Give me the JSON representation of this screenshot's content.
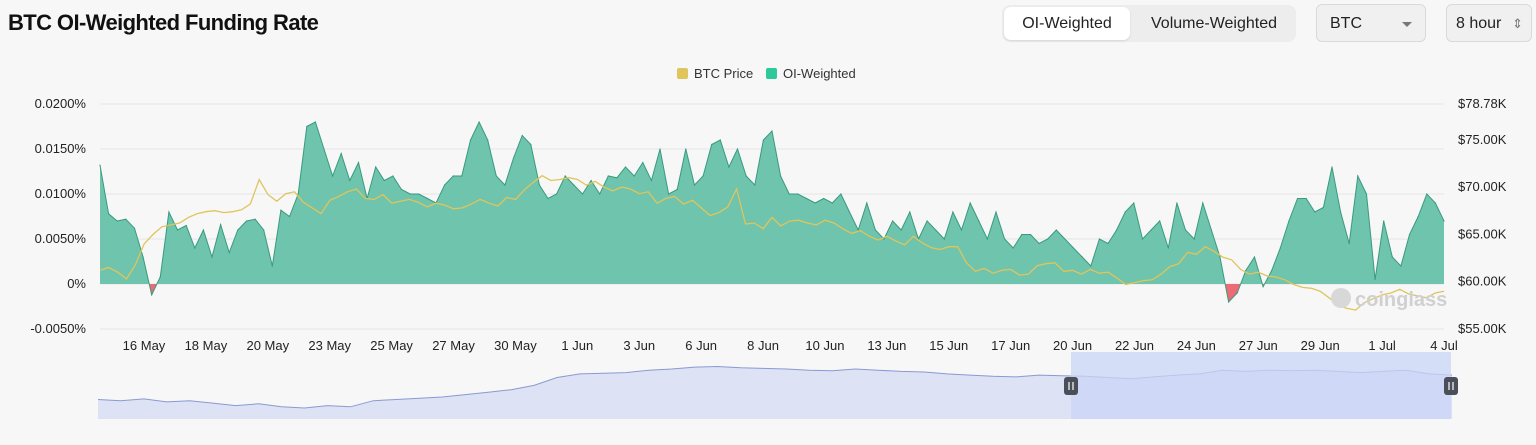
{
  "header": {
    "title": "BTC OI-Weighted Funding Rate",
    "tabs": [
      {
        "label": "OI-Weighted",
        "active": true
      },
      {
        "label": "Volume-Weighted",
        "active": false
      }
    ],
    "coin_select": {
      "value": "BTC"
    },
    "interval_select": {
      "value": "8 hour"
    }
  },
  "watermark": "coinglass",
  "colors": {
    "price": "#e0c45c",
    "positive": "#6ec4ac",
    "positive_line": "#3a9a7e",
    "negative": "#ec6b77",
    "legend_green": "#2ec99b",
    "navigator": "#dde2f5",
    "navigator_selected": "#c9d6f7",
    "navigator_line": "#8a9ad0"
  },
  "chart_data": {
    "type": "area",
    "legend": [
      {
        "name": "BTC Price",
        "color": "#e0c45c"
      },
      {
        "name": "OI-Weighted",
        "color": "#2ec99b"
      }
    ],
    "x_ticks": [
      "16 May",
      "18 May",
      "20 May",
      "23 May",
      "25 May",
      "27 May",
      "30 May",
      "1 Jun",
      "3 Jun",
      "6 Jun",
      "8 Jun",
      "10 Jun",
      "13 Jun",
      "15 Jun",
      "17 Jun",
      "20 Jun",
      "22 Jun",
      "24 Jun",
      "27 Jun",
      "29 Jun",
      "1 Jul",
      "4 Jul"
    ],
    "y_left": {
      "ticks": [
        "0.0200%",
        "0.0150%",
        "0.0100%",
        "0.0050%",
        "0%",
        "-0.0050%"
      ],
      "range": [
        -0.005,
        0.02
      ]
    },
    "y_right": {
      "ticks": [
        "$78.78K",
        "$75.00K",
        "$70.00K",
        "$65.00K",
        "$60.00K",
        "$55.00K"
      ],
      "range": [
        55000,
        78780
      ]
    },
    "series": [
      {
        "name": "OI-Weighted",
        "unit": "%",
        "values": [
          0.0132,
          0.0078,
          0.007,
          0.0072,
          0.0062,
          0.003,
          -0.0012,
          0.0008,
          0.008,
          0.006,
          0.0065,
          0.004,
          0.006,
          0.003,
          0.0066,
          0.0035,
          0.006,
          0.007,
          0.0072,
          0.006,
          0.002,
          0.0082,
          0.0075,
          0.01,
          0.0175,
          0.018,
          0.015,
          0.012,
          0.0145,
          0.0115,
          0.0135,
          0.0095,
          0.013,
          0.0115,
          0.012,
          0.0105,
          0.01,
          0.01,
          0.0095,
          0.009,
          0.011,
          0.012,
          0.012,
          0.016,
          0.018,
          0.016,
          0.012,
          0.011,
          0.014,
          0.0165,
          0.0155,
          0.011,
          0.0095,
          0.01,
          0.012,
          0.011,
          0.01,
          0.0115,
          0.01,
          0.012,
          0.0118,
          0.013,
          0.012,
          0.0135,
          0.0115,
          0.015,
          0.01,
          0.0105,
          0.015,
          0.011,
          0.012,
          0.0155,
          0.016,
          0.013,
          0.015,
          0.012,
          0.011,
          0.016,
          0.017,
          0.012,
          0.01,
          0.01,
          0.0095,
          0.009,
          0.0095,
          0.009,
          0.01,
          0.008,
          0.006,
          0.009,
          0.006,
          0.005,
          0.007,
          0.006,
          0.008,
          0.005,
          0.007,
          0.006,
          0.005,
          0.008,
          0.006,
          0.009,
          0.007,
          0.005,
          0.008,
          0.005,
          0.004,
          0.0055,
          0.0055,
          0.0045,
          0.005,
          0.006,
          0.005,
          0.004,
          0.003,
          0.002,
          0.005,
          0.0045,
          0.006,
          0.008,
          0.009,
          0.005,
          0.006,
          0.007,
          0.004,
          0.009,
          0.006,
          0.005,
          0.009,
          0.006,
          0.003,
          -0.002,
          -0.001,
          0.0015,
          0.003,
          -0.0003,
          0.0015,
          0.004,
          0.007,
          0.0095,
          0.0095,
          0.008,
          0.0085,
          0.013,
          0.008,
          0.0045,
          0.012,
          0.01,
          0.0005,
          0.007,
          0.003,
          0.002,
          0.0055,
          0.0075,
          0.01,
          0.009,
          0.007
        ]
      },
      {
        "name": "BTC Price",
        "unit": "USD",
        "values": [
          61200,
          61500,
          61000,
          60300,
          61800,
          64000,
          65000,
          65800,
          66000,
          66200,
          66800,
          67200,
          67400,
          67500,
          67300,
          67400,
          67600,
          68200,
          70800,
          69200,
          68500,
          69300,
          69500,
          68400,
          67800,
          67200,
          68600,
          69000,
          69500,
          69800,
          68800,
          68700,
          69200,
          68300,
          68500,
          68700,
          68400,
          67900,
          68300,
          68100,
          67700,
          67800,
          68200,
          68700,
          68300,
          68000,
          68900,
          68700,
          69700,
          70500,
          71200,
          70700,
          70800,
          71000,
          70800,
          70200,
          70600,
          70000,
          69600,
          70000,
          69800,
          69300,
          69500,
          68300,
          68800,
          69000,
          68200,
          68600,
          67800,
          67000,
          67300,
          67900,
          69800,
          66100,
          66200,
          65600,
          66800,
          65900,
          66400,
          66500,
          66200,
          66000,
          66500,
          66200,
          65600,
          65100,
          65400,
          64800,
          64400,
          64800,
          64300,
          63900,
          64800,
          64100,
          63600,
          63400,
          63700,
          63700,
          62000,
          61100,
          61400,
          60900,
          61200,
          61300,
          60700,
          60800,
          61700,
          61900,
          62000,
          61100,
          61200,
          60800,
          61300,
          60900,
          61000,
          60400,
          59700,
          59900,
          60100,
          60200,
          60800,
          61600,
          61900,
          63100,
          62900,
          63700,
          63200,
          62600,
          62300,
          61300,
          60800,
          61000,
          60600,
          60500,
          60200,
          59700,
          59400,
          59300,
          59000,
          58300,
          57500,
          57200,
          57000,
          57800,
          58200,
          58600,
          58800,
          59200,
          58700,
          58500,
          58300,
          58800,
          59000
        ]
      }
    ],
    "navigator": {
      "selected_range": [
        "20 Jun",
        "4 Jul"
      ],
      "values": [
        0.32,
        0.3,
        0.33,
        0.28,
        0.3,
        0.26,
        0.22,
        0.25,
        0.2,
        0.18,
        0.22,
        0.2,
        0.3,
        0.32,
        0.34,
        0.36,
        0.4,
        0.44,
        0.48,
        0.55,
        0.68,
        0.74,
        0.75,
        0.76,
        0.8,
        0.82,
        0.85,
        0.86,
        0.84,
        0.83,
        0.82,
        0.8,
        0.79,
        0.82,
        0.8,
        0.78,
        0.77,
        0.74,
        0.72,
        0.7,
        0.69,
        0.72,
        0.71,
        0.7,
        0.68,
        0.66,
        0.69,
        0.72,
        0.74,
        0.8,
        0.78,
        0.8,
        0.79,
        0.8,
        0.78,
        0.76,
        0.78,
        0.8,
        0.74,
        0.72
      ]
    }
  }
}
